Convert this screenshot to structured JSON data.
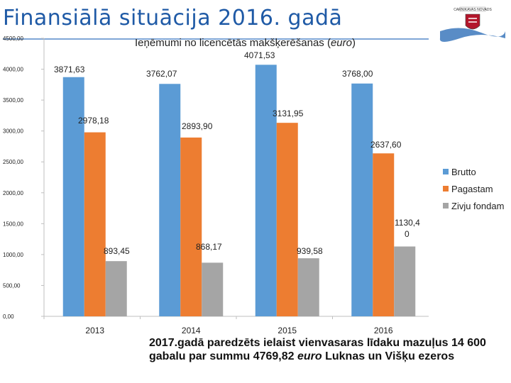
{
  "page": {
    "title": "Finansiālā situācija 2016. gadā"
  },
  "logo": {
    "text": "CARNIKAVAS NOVADS",
    "icon": "coat-of-arms-icon",
    "colors": {
      "flag_blue": "#2f6fb8",
      "shield_red": "#b3162b"
    }
  },
  "note": {
    "part1": "2017.gadā paredzēts ielaist vienvasaras līdaku mazuļus 14 600 gabalu par summu  4769,82 ",
    "part_italic": "euro",
    "part2": " Luknas un Višķu ezeros"
  },
  "chart_data": {
    "type": "bar",
    "title_main": "Ieņēmumi no licencētās makšķerēšanas (",
    "title_italic": "euro",
    "title_end": ")",
    "categories": [
      "2013",
      "2014",
      "2015",
      "2016"
    ],
    "y_ticks": [
      "0,00",
      "500,00",
      "1000,00",
      "1500,00",
      "2000,00",
      "2500,00",
      "3000,00",
      "3500,00",
      "4000,00",
      "4500,00"
    ],
    "ylim": [
      0,
      4500
    ],
    "grid": false,
    "legend_position": "right",
    "series": [
      {
        "name": "Brutto",
        "color": "#5b9bd5",
        "values": [
          3871.63,
          3762.07,
          4071.53,
          3768.0
        ],
        "labels": [
          "3871,63",
          "3762,07",
          "4071,53",
          "3768,00"
        ]
      },
      {
        "name": "Pagastam",
        "color": "#ed7d31",
        "values": [
          2978.18,
          2893.9,
          3131.95,
          2637.6
        ],
        "labels": [
          "2978,18",
          "2893,90",
          "3131,95",
          "2637,60"
        ]
      },
      {
        "name": "Zivju fondam",
        "color": "#a5a5a5",
        "values": [
          893.45,
          868.17,
          939.58,
          1130.4
        ],
        "labels": [
          "893,45",
          "868,17",
          "939,58",
          "1130,4 0"
        ]
      }
    ]
  }
}
